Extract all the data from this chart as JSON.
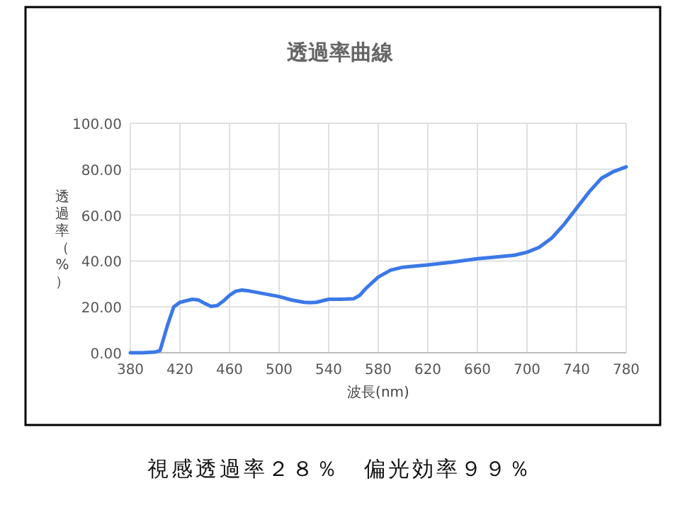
{
  "chart_data": {
    "type": "line",
    "title": "透過率曲線",
    "xlabel": "波長(nm)",
    "ylabel": "透過率（%）",
    "annotations": [
      "視感透過率２８％　偏光効率９９％"
    ],
    "xlim": [
      380,
      780
    ],
    "xticks": [
      380,
      420,
      460,
      500,
      540,
      580,
      620,
      660,
      700,
      740,
      780
    ],
    "ylim": [
      0,
      100
    ],
    "yticks": [
      {
        "value": 0,
        "label": "0.00"
      },
      {
        "value": 20,
        "label": "20.00"
      },
      {
        "value": 40,
        "label": "40.00"
      },
      {
        "value": 60,
        "label": "60.00"
      },
      {
        "value": 80,
        "label": "80.00"
      },
      {
        "value": 100,
        "label": "100.00"
      }
    ],
    "grid": true,
    "series": [
      {
        "color": "#3b78e7",
        "x": [
          380,
          390,
          400,
          404,
          410,
          415,
          420,
          430,
          435,
          440,
          445,
          450,
          455,
          460,
          465,
          470,
          475,
          480,
          490,
          500,
          510,
          520,
          525,
          530,
          540,
          550,
          560,
          565,
          570,
          580,
          590,
          600,
          620,
          640,
          660,
          680,
          690,
          700,
          710,
          720,
          730,
          740,
          750,
          760,
          770,
          780
        ],
        "values": [
          0,
          0,
          0.3,
          1,
          12,
          20,
          22,
          23.3,
          23,
          21.5,
          20.2,
          20.5,
          22.5,
          25,
          26.8,
          27.3,
          27,
          26.5,
          25.5,
          24.5,
          23,
          22,
          21.8,
          22,
          23.3,
          23.3,
          23.5,
          25,
          28,
          33,
          36,
          37.3,
          38.3,
          39.5,
          41,
          42,
          42.5,
          43.8,
          46,
          50,
          56,
          63,
          70,
          76,
          79,
          81
        ]
      }
    ]
  }
}
